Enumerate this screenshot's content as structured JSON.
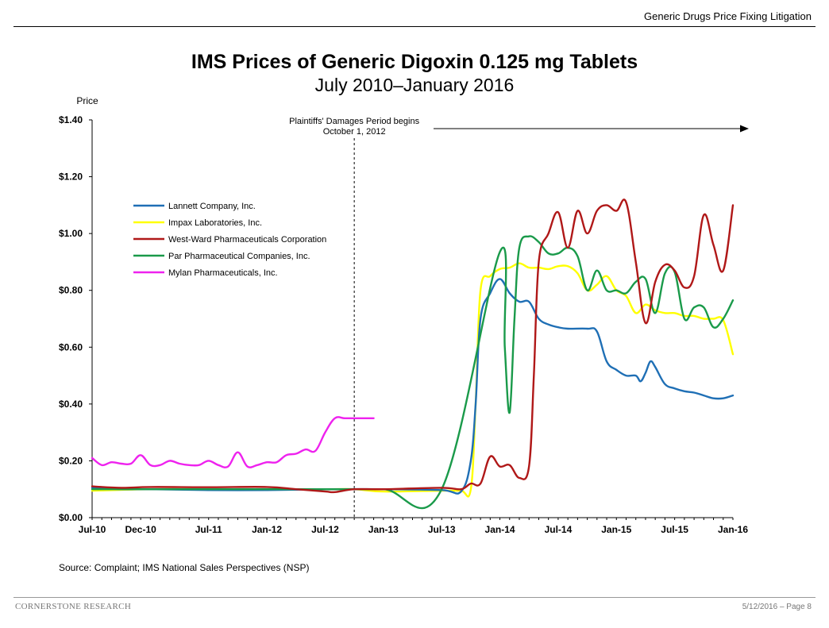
{
  "header": {
    "title": "Generic Drugs Price Fixing Litigation"
  },
  "footer": {
    "left": "CORNERSTONE RESEARCH",
    "right": "5/12/2016 – Page 8"
  },
  "source": "Source: Complaint; IMS National Sales Perspectives (NSP)",
  "chart_data": {
    "type": "line",
    "title": "IMS Prices of Generic Digoxin 0.125 mg Tablets",
    "subtitle": "July 2010–January 2016",
    "ylabel": "Price",
    "xlabel": "",
    "ylim": [
      0,
      1.4
    ],
    "yticks": [
      0,
      0.2,
      0.4,
      0.6,
      0.8,
      1.0,
      1.2,
      1.4
    ],
    "ytick_labels": [
      "$0.00",
      "$0.20",
      "$0.40",
      "$0.60",
      "$0.80",
      "$1.00",
      "$1.20",
      "$1.40"
    ],
    "x_start": "Jul-10",
    "x_end": "Jan-16",
    "xticks": [
      "Jul-10",
      "Dec-10",
      "Jul-11",
      "Jan-12",
      "Jul-12",
      "Jan-13",
      "Jul-13",
      "Jan-14",
      "Jul-14",
      "Jan-15",
      "Jul-15",
      "Jan-16"
    ],
    "x_unit": "month index from Jul-10 (Jul-10 = 0)",
    "xtick_positions": [
      0,
      5,
      12,
      18,
      24,
      30,
      36,
      42,
      48,
      54,
      60,
      66
    ],
    "grid": false,
    "legend_position": "upper-left",
    "annotation": {
      "text_line1": "Plaintiffs' Damages Period begins",
      "text_line2": "October 1, 2012",
      "x": 27
    },
    "series": [
      {
        "name": "Lannett Company, Inc.",
        "color": "#1f6fb5",
        "points": [
          [
            0,
            0.105
          ],
          [
            3,
            0.1
          ],
          [
            6,
            0.1
          ],
          [
            12,
            0.097
          ],
          [
            18,
            0.097
          ],
          [
            24,
            0.1
          ],
          [
            30,
            0.1
          ],
          [
            36,
            0.097
          ],
          [
            38,
            0.092
          ],
          [
            39,
            0.2
          ],
          [
            39.5,
            0.4
          ],
          [
            40,
            0.7
          ],
          [
            41,
            0.79
          ],
          [
            42,
            0.84
          ],
          [
            43,
            0.79
          ],
          [
            44,
            0.76
          ],
          [
            45,
            0.76
          ],
          [
            46,
            0.7
          ],
          [
            47,
            0.68
          ],
          [
            48,
            0.67
          ],
          [
            49,
            0.665
          ],
          [
            51,
            0.665
          ],
          [
            52,
            0.655
          ],
          [
            53,
            0.55
          ],
          [
            54,
            0.52
          ],
          [
            55,
            0.5
          ],
          [
            56,
            0.5
          ],
          [
            56.5,
            0.48
          ],
          [
            57,
            0.51
          ],
          [
            57.5,
            0.55
          ],
          [
            58,
            0.53
          ],
          [
            59,
            0.47
          ],
          [
            60,
            0.455
          ],
          [
            61,
            0.445
          ],
          [
            62,
            0.44
          ],
          [
            63,
            0.43
          ],
          [
            64,
            0.42
          ],
          [
            65,
            0.42
          ],
          [
            66,
            0.43
          ]
        ]
      },
      {
        "name": "Impax Laboratories, Inc.",
        "color": "#ffff00",
        "points": [
          [
            0,
            0.095
          ],
          [
            6,
            0.1
          ],
          [
            12,
            0.1
          ],
          [
            18,
            0.1
          ],
          [
            24,
            0.1
          ],
          [
            27,
            0.1
          ],
          [
            30,
            0.092
          ],
          [
            36,
            0.095
          ],
          [
            38,
            0.095
          ],
          [
            39,
            0.1
          ],
          [
            39.5,
            0.4
          ],
          [
            40,
            0.8
          ],
          [
            41,
            0.85
          ],
          [
            42,
            0.875
          ],
          [
            43,
            0.88
          ],
          [
            44,
            0.895
          ],
          [
            45,
            0.88
          ],
          [
            46,
            0.88
          ],
          [
            47,
            0.875
          ],
          [
            48,
            0.885
          ],
          [
            49,
            0.885
          ],
          [
            50,
            0.86
          ],
          [
            51,
            0.8
          ],
          [
            52,
            0.82
          ],
          [
            53,
            0.85
          ],
          [
            54,
            0.8
          ],
          [
            55,
            0.78
          ],
          [
            56,
            0.72
          ],
          [
            57,
            0.75
          ],
          [
            58,
            0.73
          ],
          [
            59,
            0.72
          ],
          [
            60,
            0.72
          ],
          [
            61,
            0.71
          ],
          [
            62,
            0.71
          ],
          [
            63,
            0.7
          ],
          [
            64,
            0.7
          ],
          [
            65,
            0.695
          ],
          [
            66,
            0.575
          ]
        ]
      },
      {
        "name": "West-Ward Pharmaceuticals Corporation",
        "color": "#b01818",
        "points": [
          [
            0,
            0.11
          ],
          [
            3,
            0.105
          ],
          [
            6,
            0.108
          ],
          [
            12,
            0.107
          ],
          [
            18,
            0.108
          ],
          [
            21,
            0.1
          ],
          [
            24,
            0.092
          ],
          [
            25,
            0.09
          ],
          [
            27,
            0.1
          ],
          [
            30,
            0.1
          ],
          [
            36,
            0.105
          ],
          [
            38,
            0.1
          ],
          [
            39,
            0.12
          ],
          [
            40,
            0.12
          ],
          [
            41,
            0.215
          ],
          [
            42,
            0.18
          ],
          [
            43,
            0.185
          ],
          [
            44,
            0.14
          ],
          [
            45,
            0.18
          ],
          [
            45.5,
            0.5
          ],
          [
            46,
            0.9
          ],
          [
            47,
            1.0
          ],
          [
            48,
            1.075
          ],
          [
            49,
            0.95
          ],
          [
            50,
            1.08
          ],
          [
            51,
            1.0
          ],
          [
            52,
            1.08
          ],
          [
            53,
            1.1
          ],
          [
            54,
            1.08
          ],
          [
            55,
            1.11
          ],
          [
            56,
            0.9
          ],
          [
            57,
            0.685
          ],
          [
            58,
            0.83
          ],
          [
            59,
            0.89
          ],
          [
            60,
            0.87
          ],
          [
            61,
            0.81
          ],
          [
            62,
            0.85
          ],
          [
            63,
            1.065
          ],
          [
            64,
            0.96
          ],
          [
            65,
            0.87
          ],
          [
            66,
            1.1
          ]
        ]
      },
      {
        "name": "Par Pharmaceutical Companies, Inc.",
        "color": "#1a9a4a",
        "points": [
          [
            0,
            0.1
          ],
          [
            6,
            0.1
          ],
          [
            12,
            0.1
          ],
          [
            18,
            0.1
          ],
          [
            24,
            0.1
          ],
          [
            30,
            0.1
          ],
          [
            36,
            0.1
          ],
          [
            42,
            0.935
          ],
          [
            42.5,
            0.6
          ],
          [
            43,
            0.37
          ],
          [
            43.5,
            0.7
          ],
          [
            44,
            0.95
          ],
          [
            45,
            0.99
          ],
          [
            46,
            0.97
          ],
          [
            47,
            0.93
          ],
          [
            48,
            0.93
          ],
          [
            49,
            0.95
          ],
          [
            50,
            0.92
          ],
          [
            51,
            0.8
          ],
          [
            52,
            0.87
          ],
          [
            53,
            0.8
          ],
          [
            54,
            0.8
          ],
          [
            55,
            0.79
          ],
          [
            56,
            0.83
          ],
          [
            57,
            0.84
          ],
          [
            58,
            0.72
          ],
          [
            59,
            0.86
          ],
          [
            60,
            0.865
          ],
          [
            61,
            0.7
          ],
          [
            62,
            0.74
          ],
          [
            63,
            0.74
          ],
          [
            64,
            0.67
          ],
          [
            65,
            0.7
          ],
          [
            66,
            0.765
          ]
        ]
      },
      {
        "name": "Mylan Pharmaceuticals, Inc.",
        "color": "#ee22ee",
        "points": [
          [
            0,
            0.21
          ],
          [
            1,
            0.185
          ],
          [
            2,
            0.195
          ],
          [
            3,
            0.19
          ],
          [
            4,
            0.19
          ],
          [
            5,
            0.22
          ],
          [
            6,
            0.185
          ],
          [
            7,
            0.185
          ],
          [
            8,
            0.2
          ],
          [
            9,
            0.19
          ],
          [
            10,
            0.185
          ],
          [
            11,
            0.185
          ],
          [
            12,
            0.2
          ],
          [
            13,
            0.185
          ],
          [
            14,
            0.18
          ],
          [
            15,
            0.23
          ],
          [
            16,
            0.18
          ],
          [
            17,
            0.185
          ],
          [
            18,
            0.195
          ],
          [
            19,
            0.195
          ],
          [
            20,
            0.22
          ],
          [
            21,
            0.225
          ],
          [
            22,
            0.24
          ],
          [
            23,
            0.235
          ],
          [
            24,
            0.3
          ],
          [
            25,
            0.35
          ],
          [
            26,
            0.35
          ],
          [
            27,
            0.35
          ],
          [
            28,
            0.35
          ],
          [
            29,
            0.35
          ]
        ]
      }
    ]
  }
}
